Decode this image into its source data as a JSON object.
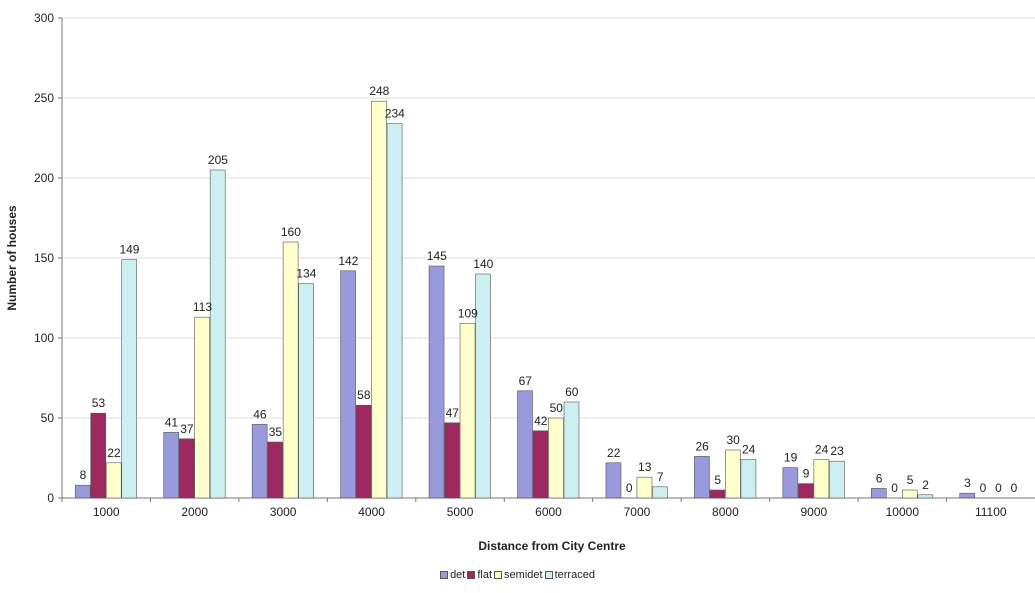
{
  "chart_data": {
    "type": "bar",
    "title": "",
    "xlabel": "Distance from City Centre",
    "ylabel": "Number of houses",
    "ylim": [
      0,
      300
    ],
    "yticks": [
      0,
      50,
      100,
      150,
      200,
      250,
      300
    ],
    "grid": true,
    "legend_position": "bottom",
    "categories": [
      "1000",
      "2000",
      "3000",
      "4000",
      "5000",
      "6000",
      "7000",
      "8000",
      "9000",
      "10000",
      "11100"
    ],
    "series": [
      {
        "name": "det",
        "color": "#9999dd",
        "values": [
          8,
          41,
          46,
          142,
          145,
          67,
          22,
          26,
          19,
          6,
          3
        ]
      },
      {
        "name": "flat",
        "color": "#a02860",
        "values": [
          53,
          37,
          35,
          58,
          47,
          42,
          0,
          5,
          9,
          0,
          0
        ]
      },
      {
        "name": "semidet",
        "color": "#ffffcc",
        "values": [
          22,
          113,
          160,
          248,
          109,
          50,
          13,
          30,
          24,
          5,
          0
        ]
      },
      {
        "name": "terraced",
        "color": "#ccf0f2",
        "values": [
          149,
          205,
          134,
          234,
          140,
          60,
          7,
          24,
          23,
          2,
          0
        ]
      }
    ]
  }
}
